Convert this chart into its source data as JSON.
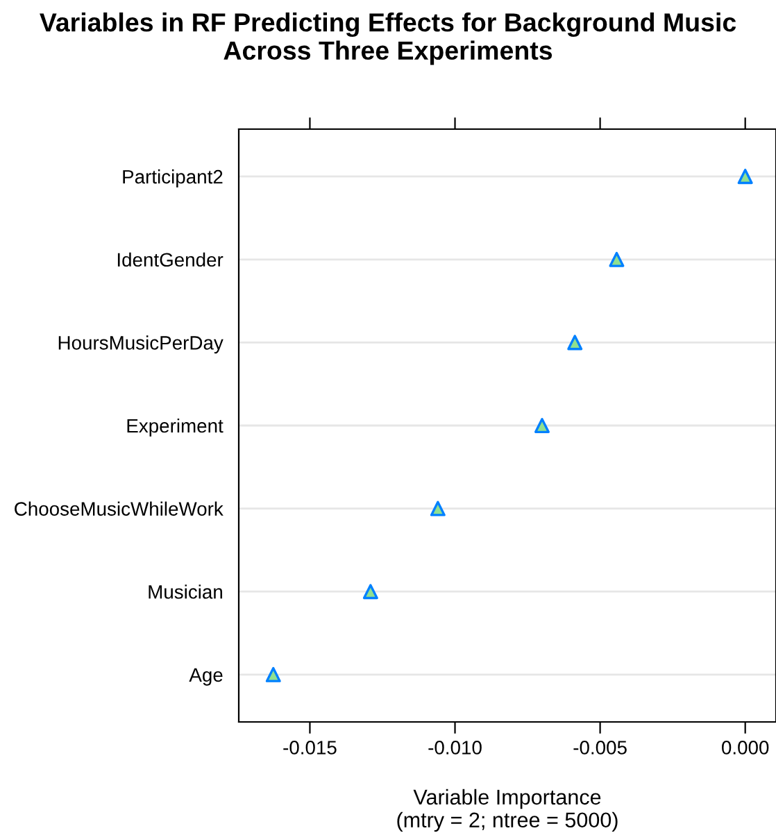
{
  "chart_data": {
    "type": "scatter",
    "orientation": "horizontal",
    "title": "Variables in RF Predicting Effects for Background Music\nAcross Three Experiments",
    "xlabel": "Variable Importance\n(mtry = 2; ntree = 5000)",
    "categories": [
      "Participant2",
      "IdentGender",
      "HoursMusicPerDay",
      "Experiment",
      "ChooseMusicWhileWork",
      "Musician",
      "Age"
    ],
    "values": [
      0.0,
      -0.00443,
      -0.00587,
      -0.007,
      -0.01059,
      -0.01291,
      -0.01626
    ],
    "color": "#0080ff",
    "marker": "triangle",
    "xlim": [
      -0.01745,
      0.00106
    ],
    "xticks": [
      {
        "value": -0.015,
        "label": "-0.015"
      },
      {
        "value": -0.01,
        "label": "-0.010"
      },
      {
        "value": -0.005,
        "label": "-0.005"
      },
      {
        "value": 0.0,
        "label": "0.000"
      }
    ],
    "grid": "y",
    "legend": false
  }
}
